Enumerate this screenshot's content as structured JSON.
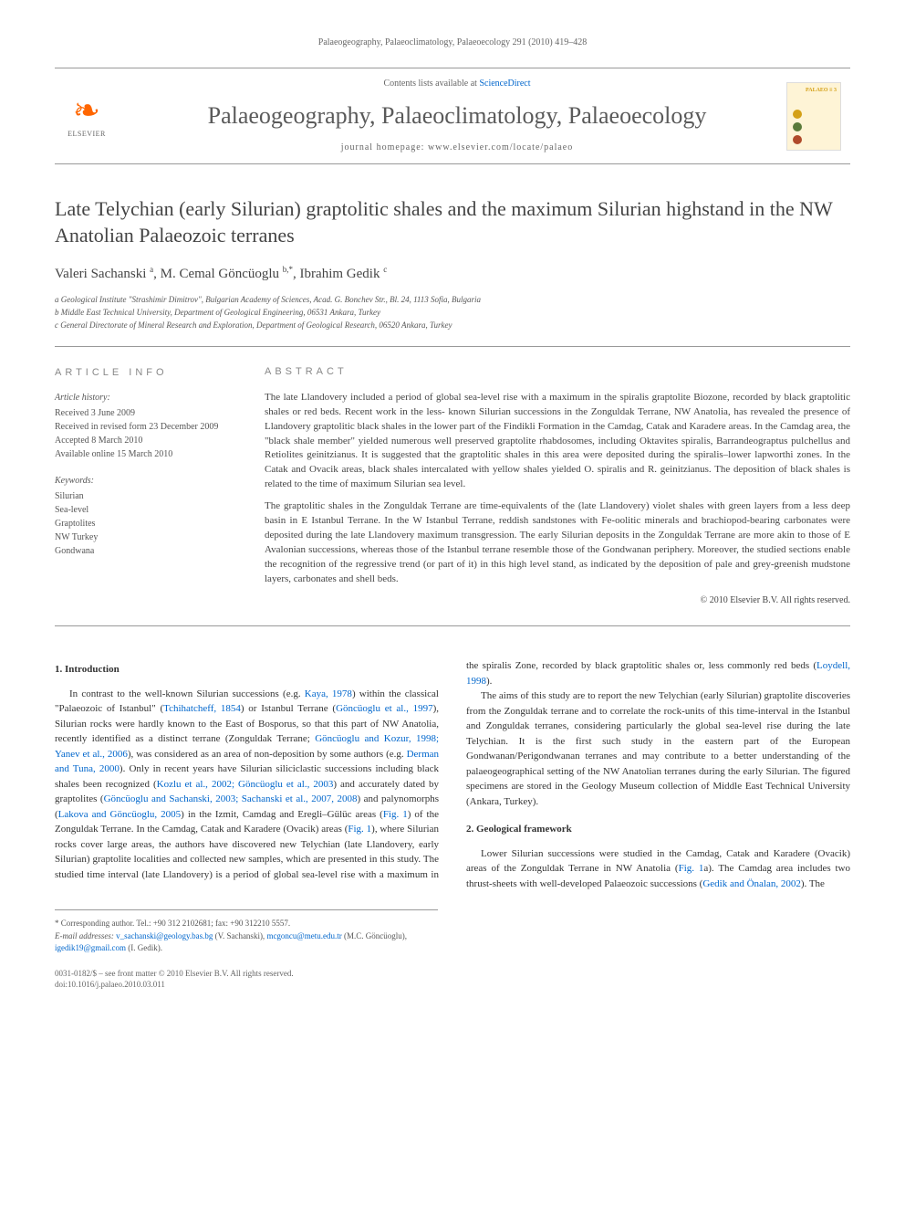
{
  "running_head": "Palaeogeography, Palaeoclimatology, Palaeoecology 291 (2010) 419–428",
  "masthead": {
    "elsevier_label": "ELSEVIER",
    "contents_prefix": "Contents lists available at ",
    "contents_link": "ScienceDirect",
    "journal_name": "Palaeogeography, Palaeoclimatology, Palaeoecology",
    "homepage_prefix": "journal homepage: ",
    "homepage_url": "www.elsevier.com/locate/palaeo",
    "cover_title": "PALAEO ≡ 3",
    "cover_dot_colors": [
      "#d4a017",
      "#5a7a3a",
      "#b04a2a"
    ]
  },
  "article": {
    "title": "Late Telychian (early Silurian) graptolitic shales and the maximum Silurian highstand in the NW Anatolian Palaeozoic terranes",
    "authors_html": "Valeri Sachanski <sup>a</sup>, M. Cemal Göncüoglu <sup>b,*</sup>, Ibrahim Gedik <sup>c</sup>",
    "affiliations": [
      "a Geological Institute \"Strashimir Dimitrov\", Bulgarian Academy of Sciences, Acad. G. Bonchev Str., Bl. 24, 1113 Sofia, Bulgaria",
      "b Middle East Technical University, Department of Geological Engineering, 06531 Ankara, Turkey",
      "c General Directorate of Mineral Research and Exploration, Department of Geological Research, 06520 Ankara, Turkey"
    ]
  },
  "article_info": {
    "heading": "ARTICLE INFO",
    "history_label": "Article history:",
    "history": [
      "Received 3 June 2009",
      "Received in revised form 23 December 2009",
      "Accepted 8 March 2010",
      "Available online 15 March 2010"
    ],
    "keywords_label": "Keywords:",
    "keywords": [
      "Silurian",
      "Sea-level",
      "Graptolites",
      "NW Turkey",
      "Gondwana"
    ]
  },
  "abstract": {
    "heading": "ABSTRACT",
    "p1": "The late Llandovery included a period of global sea-level rise with a maximum in the spiralis graptolite Biozone, recorded by black graptolitic shales or red beds. Recent work in the less- known Silurian successions in the Zonguldak Terrane, NW Anatolia, has revealed the presence of Llandovery graptolitic black shales in the lower part of the Findikli Formation in the Camdag, Catak and Karadere areas. In the Camdag area, the \"black shale member\" yielded numerous well preserved graptolite rhabdosomes, including Oktavites spiralis, Barrandeograptus pulchellus and Retiolites geinitzianus. It is suggested that the graptolitic shales in this area were deposited during the spiralis–lower lapworthi zones. In the Catak and Ovacik areas, black shales intercalated with yellow shales yielded O. spiralis and R. geinitzianus. The deposition of black shales is related to the time of maximum Silurian sea level.",
    "p2": "The graptolitic shales in the Zonguldak Terrane are time-equivalents of the (late Llandovery) violet shales with green layers from a less deep basin in E Istanbul Terrane. In the W Istanbul Terrane, reddish sandstones with Fe-oolitic minerals and brachiopod-bearing carbonates were deposited during the late Llandovery maximum transgression. The early Silurian deposits in the Zonguldak Terrane are more akin to those of E Avalonian successions, whereas those of the Istanbul terrane resemble those of the Gondwanan periphery. Moreover, the studied sections enable the recognition of the regressive trend (or part of it) in this high level stand, as indicated by the deposition of pale and grey-greenish mudstone layers, carbonates and shell beds.",
    "copyright": "© 2010 Elsevier B.V. All rights reserved."
  },
  "body": {
    "intro_heading": "1. Introduction",
    "intro_p1_a": "In contrast to the well-known Silurian successions (e.g. ",
    "intro_p1_cite1": "Kaya, 1978",
    "intro_p1_b": ") within the classical \"Palaeozoic of Istanbul\" (",
    "intro_p1_cite2": "Tchihatcheff, 1854",
    "intro_p1_c": ") or Istanbul Terrane (",
    "intro_p1_cite3": "Göncüoglu et al., 1997",
    "intro_p1_d": "), Silurian rocks were hardly known to the East of Bosporus, so that this part of NW Anatolia, recently identified as a distinct terrane (Zonguldak Terrane; ",
    "intro_p1_cite4": "Göncüoglu and Kozur, 1998; Yanev et al., 2006",
    "intro_p1_e": "), was considered as an area of non-deposition by some authors (e.g. ",
    "intro_p1_cite5": "Derman and Tuna, 2000",
    "intro_p1_f": "). Only in recent years have Silurian siliciclastic successions including black shales been recognized (",
    "intro_p1_cite6": "Kozlu et al., 2002; Göncüoglu et al., 2003",
    "intro_p1_g": ") and accurately dated by graptolites (",
    "intro_p1_cite7": "Göncüoglu and Sachanski, 2003; Sachanski et al., 2007, 2008",
    "intro_p1_h": ") and palynomorphs (",
    "intro_p1_cite8": "Lakova and Göncüoglu, 2005",
    "intro_p1_i": ") in the Izmit, Camdag and Eregli–Gülüc areas (",
    "intro_p1_cite9": "Fig. 1",
    "intro_p1_j": ") of the Zonguldak Terrane. In the Camdag, Catak and Karadere (Ovacik) areas (",
    "intro_p1_cite10": "Fig. 1",
    "intro_p1_k": "), where Silurian rocks cover large areas, the authors have discovered new Telychian (late Llandovery, early Silurian) graptolite localities and collected new samples, which are presented in this study. The studied time interval (late Llandovery) is a period of global sea-level rise with a maximum in the spiralis Zone, recorded by black graptolitic shales or, less commonly red beds (",
    "intro_p1_cite11": "Loydell, 1998",
    "intro_p1_l": ").",
    "intro_p2": "The aims of this study are to report the new Telychian (early Silurian) graptolite discoveries from the Zonguldak terrane and to correlate the rock-units of this time-interval in the Istanbul and Zonguldak terranes, considering particularly the global sea-level rise during the late Telychian. It is the first such study in the eastern part of the European Gondwanan/Perigondwanan terranes and may contribute to a better understanding of the palaeogeographical setting of the NW Anatolian terranes during the early Silurian. The figured specimens are stored in the Geology Museum collection of Middle East Technical University (Ankara, Turkey).",
    "geo_heading": "2. Geological framework",
    "geo_p1_a": "Lower Silurian successions were studied in the Camdag, Catak and Karadere (Ovacik) areas of the Zonguldak Terrane in NW Anatolia (",
    "geo_p1_cite1": "Fig. 1",
    "geo_p1_b": "a). The Camdag area includes two thrust-sheets with well-developed Palaeozoic successions (",
    "geo_p1_cite2": "Gedik and Önalan, 2002",
    "geo_p1_c": "). The"
  },
  "footnotes": {
    "corresponding": "* Corresponding author. Tel.: +90 312 2102681; fax: +90 312210 5557.",
    "email_label": "E-mail addresses: ",
    "email1": "v_sachanski@geology.bas.bg",
    "email1_name": " (V. Sachanski), ",
    "email2": "mcgoncu@metu.edu.tr",
    "email2_name": " (M.C. Göncüoglu), ",
    "email3": "igedik19@gmail.com",
    "email3_name": " (I. Gedik)."
  },
  "footer": {
    "line1": "0031-0182/$ – see front matter © 2010 Elsevier B.V. All rights reserved.",
    "line2": "doi:10.1016/j.palaeo.2010.03.011"
  },
  "colors": {
    "link": "#0066cc",
    "text": "#444444",
    "muted": "#666666",
    "rule": "#999999",
    "elsevier_orange": "#ff6600"
  }
}
